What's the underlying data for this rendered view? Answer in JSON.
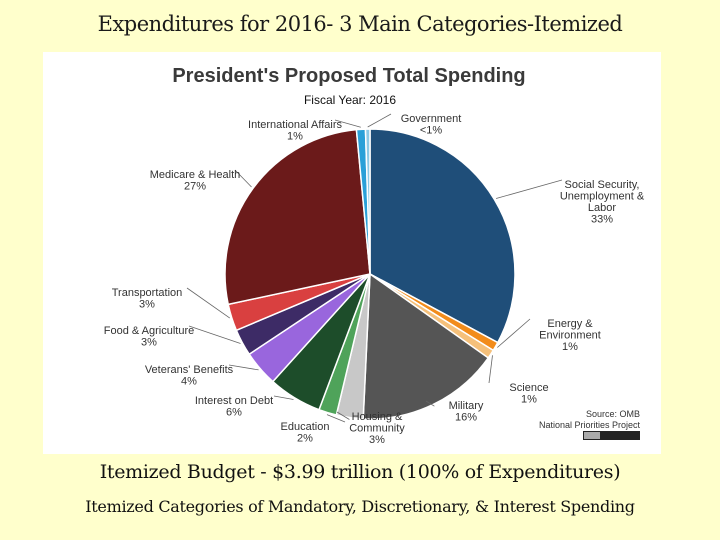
{
  "slide": {
    "title": "Expenditures for 2016- 3 Main Categories-Itemized",
    "subtitle_1": "Itemized Budget - $3.99 trillion (100%  of Expenditures)",
    "subtitle_2": "Itemized Categories of Mandatory, Discretionary, & Interest Spending"
  },
  "chart_data": {
    "type": "pie",
    "title": "President's Proposed Total Spending",
    "subtitle": "Fiscal Year: 2016",
    "source": [
      "Source: OMB",
      "National Priorities Project"
    ],
    "slices": [
      {
        "label": [
          "Social Security,",
          "Unemployment  &",
          "Labor"
        ],
        "pct_label": "33%",
        "value": 33,
        "color": "#1f4e79"
      },
      {
        "label": [
          "Energy &",
          "Environment"
        ],
        "pct_label": "1%",
        "value": 1,
        "color": "#f28c1b"
      },
      {
        "label": [
          "Science"
        ],
        "pct_label": "1%",
        "value": 1,
        "color": "#f5c07a"
      },
      {
        "label": [
          "Military"
        ],
        "pct_label": "16%",
        "value": 16,
        "color": "#555555"
      },
      {
        "label": [
          "Housing &",
          "Community"
        ],
        "pct_label": "3%",
        "value": 3,
        "color": "#c8c8c8"
      },
      {
        "label": [
          "Education"
        ],
        "pct_label": "2%",
        "value": 2,
        "color": "#4fa35a"
      },
      {
        "label": [
          "Interest on Debt"
        ],
        "pct_label": "6%",
        "value": 6,
        "color": "#1d4d2a"
      },
      {
        "label": [
          "Veterans' Benefits"
        ],
        "pct_label": "4%",
        "value": 4,
        "color": "#9966dd"
      },
      {
        "label": [
          "Food & Agriculture"
        ],
        "pct_label": "3%",
        "value": 3,
        "color": "#3d2b66"
      },
      {
        "label": [
          "Transportation"
        ],
        "pct_label": "3%",
        "value": 3,
        "color": "#d94040"
      },
      {
        "label": [
          "Medicare  & Health"
        ],
        "pct_label": "27%",
        "value": 27,
        "color": "#6b1a1a"
      },
      {
        "label": [
          "International  Affairs"
        ],
        "pct_label": "1%",
        "value": 1,
        "color": "#2aa0d8"
      },
      {
        "label": [
          "Government"
        ],
        "pct_label": "<1%",
        "value": 0.5,
        "color": "#8ecae6"
      }
    ]
  }
}
